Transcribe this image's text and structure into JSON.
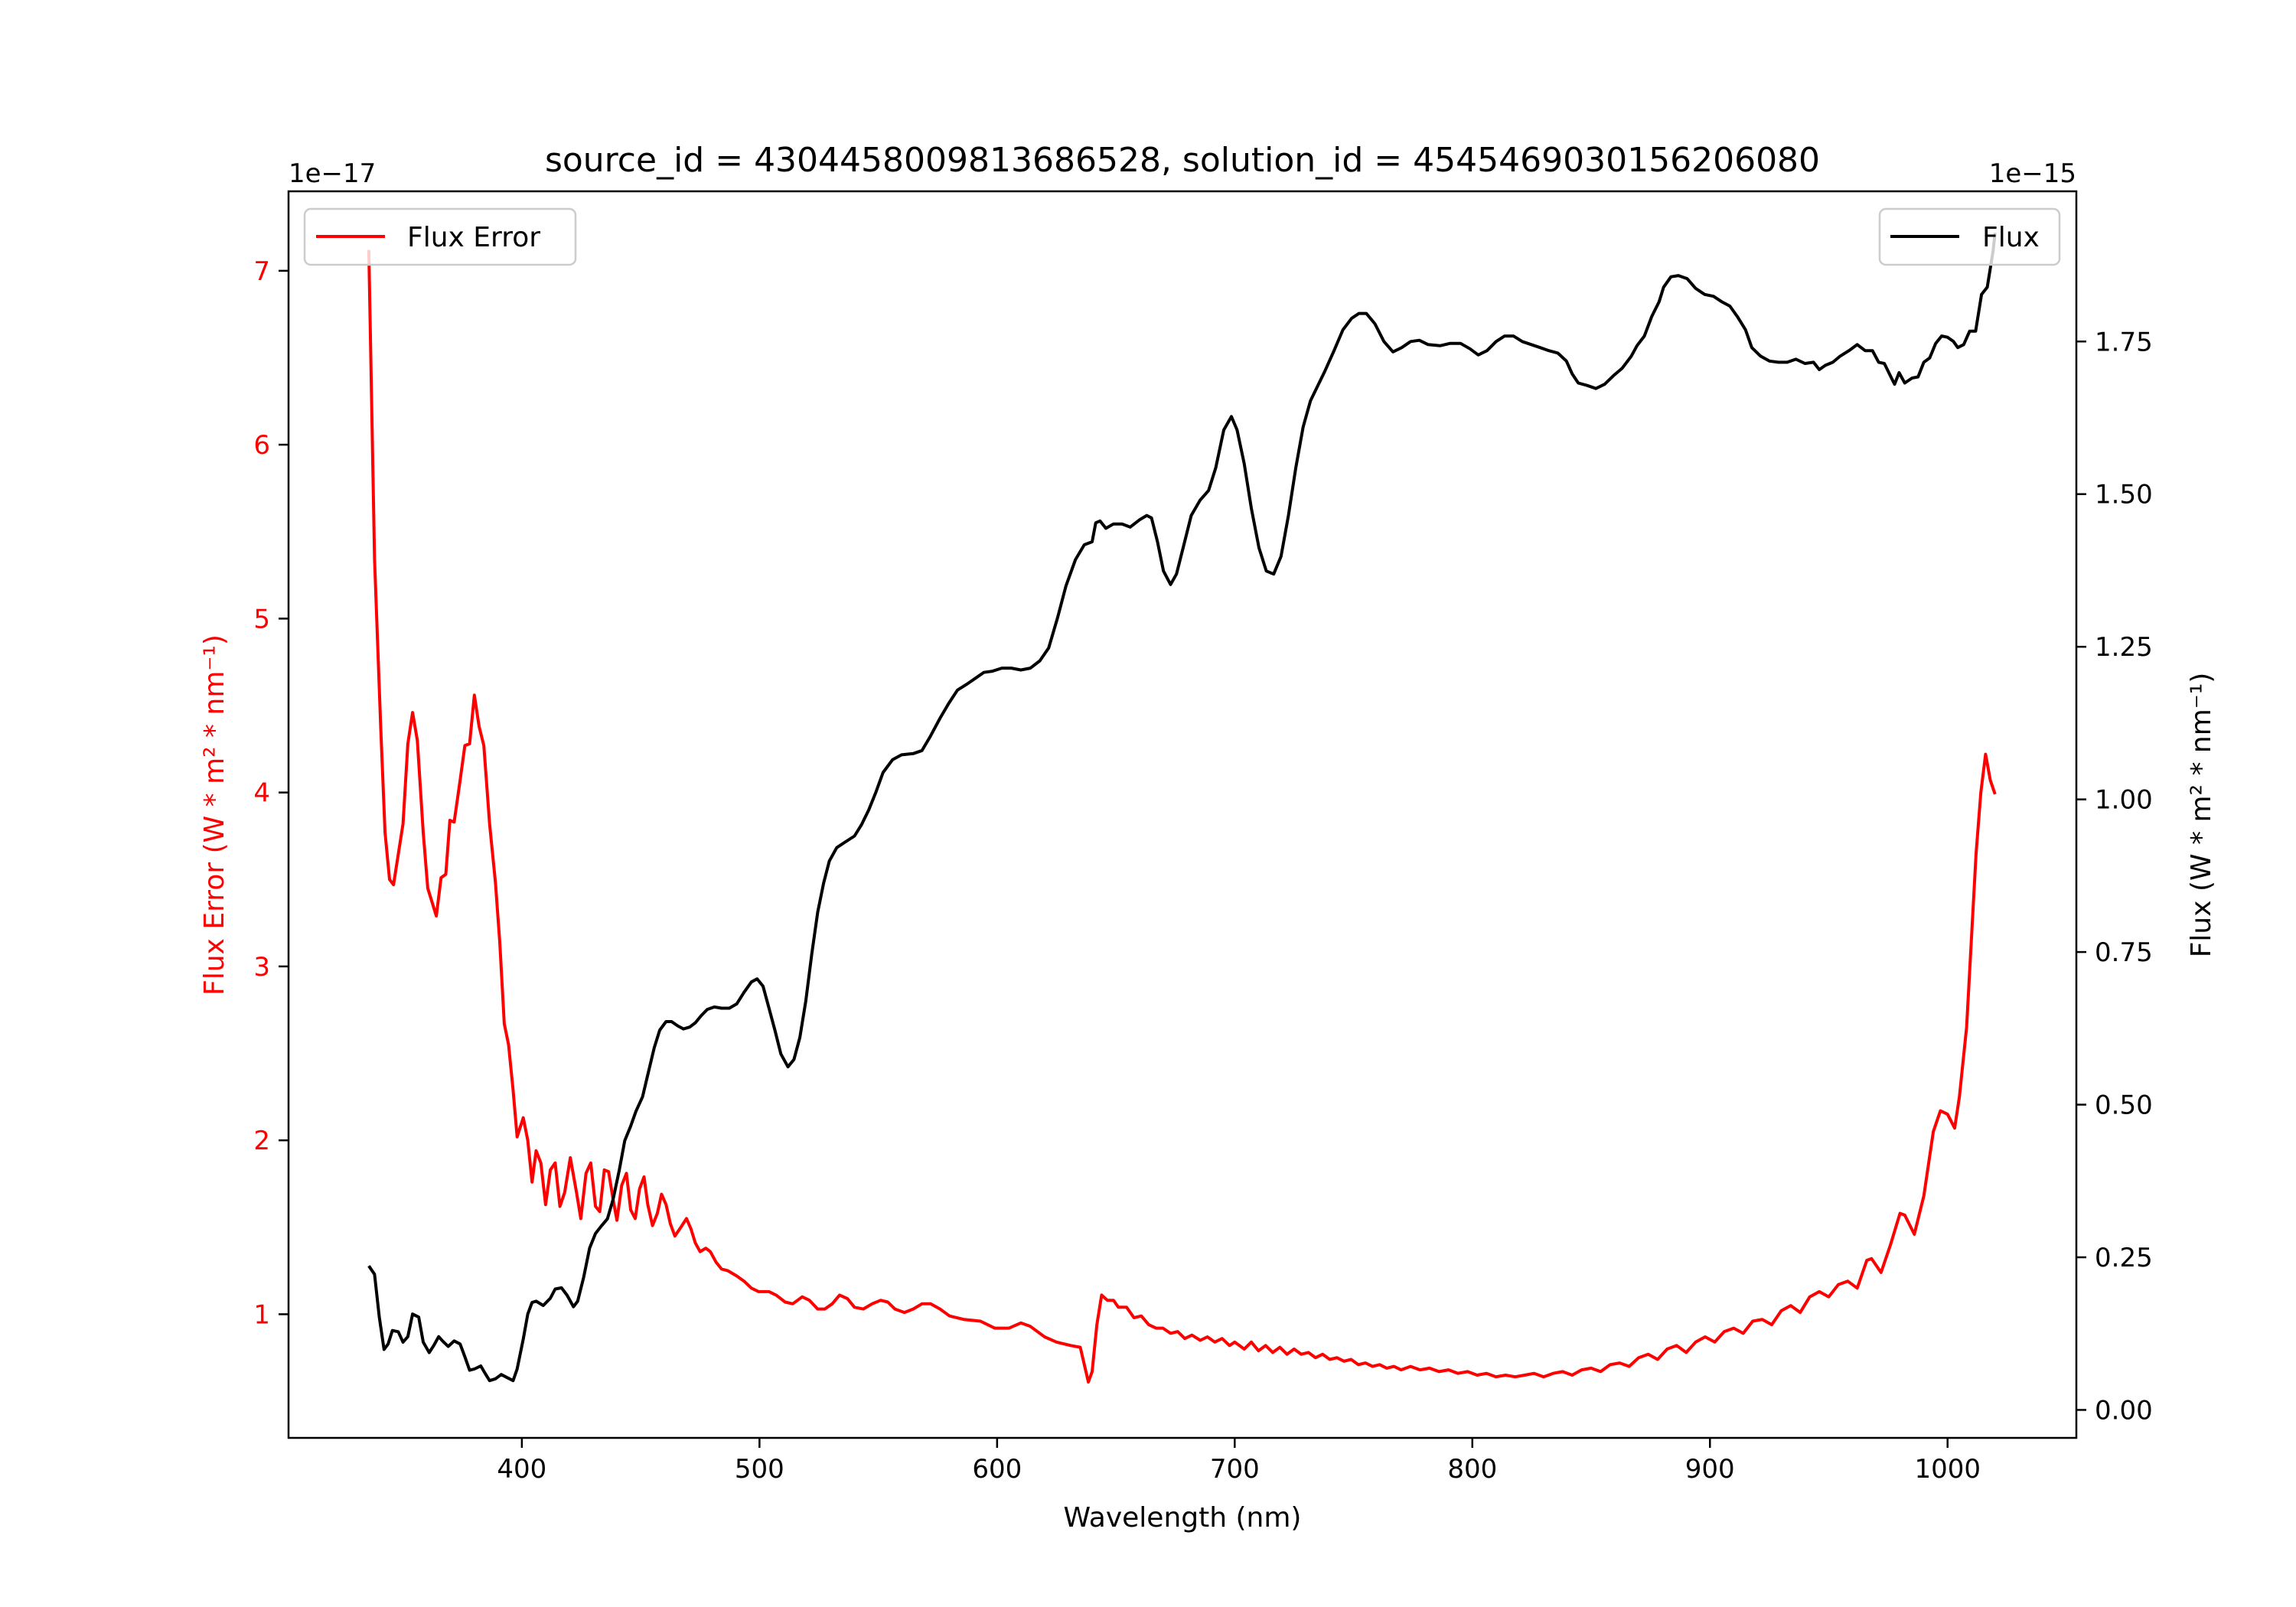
{
  "chart_data": {
    "type": "line",
    "title": "source_id = 4304458009813686528, solution_id = 4545469030156206080",
    "xlabel": "Wavelength (nm)",
    "xlim": [
      301.8,
      1054.2
    ],
    "xticks": [
      400,
      500,
      600,
      700,
      800,
      900,
      1000
    ],
    "xtick_labels": [
      "400",
      "500",
      "600",
      "700",
      "800",
      "900",
      "1000"
    ],
    "left_axis": {
      "ylabel": "Flux Error (W * m² * nm⁻¹)",
      "offset_text": "1e−17",
      "ylim": [
        0.289,
        7.457
      ],
      "yticks": [
        1,
        2,
        3,
        4,
        5,
        6,
        7
      ],
      "ytick_labels": [
        "1",
        "2",
        "3",
        "4",
        "5",
        "6",
        "7"
      ],
      "color": "#ff0000"
    },
    "right_axis": {
      "ylabel": "Flux (W * m² * nm⁻¹)",
      "offset_text": "1e−15",
      "ylim": [
        -0.0458,
        1.996
      ],
      "yticks": [
        0,
        0.25,
        0.5,
        0.75,
        1.0,
        1.25,
        1.5,
        1.75
      ],
      "ytick_labels": [
        "0.00",
        "0.25",
        "0.50",
        "0.75",
        "1.00",
        "1.25",
        "1.50",
        "1.75"
      ],
      "color": "#000000"
    },
    "grid": false,
    "series": [
      {
        "name": "Flux Error",
        "axis": "left",
        "color": "#ff0000",
        "legend_position": "upper-left",
        "x": [
          335.6,
          338,
          340.6,
          342.4,
          344.3,
          346,
          350,
          352,
          354,
          356,
          358.5,
          360.4,
          364,
          366,
          368,
          369.7,
          371.5,
          374,
          376,
          378,
          380,
          382,
          384,
          386.4,
          388.9,
          390.7,
          392.6,
          394.4,
          396.3,
          398,
          400.6,
          402.5,
          404.3,
          406,
          408,
          410,
          412,
          414,
          416,
          418,
          420.4,
          423,
          424.8,
          427,
          429,
          431,
          432.8,
          434.7,
          436.5,
          438.4,
          440,
          442,
          444,
          445.8,
          447.7,
          449.5,
          451.4,
          453,
          455,
          457,
          458.8,
          460.7,
          462.5,
          464.4,
          466.9,
          469.3,
          471.2,
          473,
          475,
          477.4,
          479.3,
          481.7,
          484,
          486.7,
          490.4,
          493.5,
          496.6,
          499.7,
          504,
          507,
          510.8,
          514,
          518,
          521,
          524.5,
          527.5,
          530.6,
          533.7,
          537,
          540,
          543.7,
          547.4,
          551,
          554,
          557,
          561,
          564.7,
          568.4,
          572,
          576,
          580,
          586,
          593,
          599,
          605,
          610,
          614,
          620,
          625,
          631,
          635,
          638.4,
          640,
          642,
          644,
          646.4,
          649,
          651,
          654.5,
          657.6,
          660.7,
          663.8,
          666.9,
          669.8,
          673,
          676,
          679,
          682,
          685.5,
          688.5,
          691.6,
          694.7,
          697.8,
          700,
          704,
          707,
          710,
          713,
          716,
          719,
          722,
          725,
          728,
          731,
          734,
          737,
          740,
          743,
          746,
          749,
          752,
          755,
          758,
          761,
          764,
          767,
          770,
          774,
          778,
          782,
          786,
          790,
          794,
          798,
          802,
          806,
          810,
          814,
          818,
          822,
          826,
          830,
          834,
          838,
          842,
          846,
          850,
          854,
          858,
          862,
          866,
          870,
          874,
          878,
          882,
          886,
          890,
          894,
          898,
          902,
          906,
          910,
          914,
          918,
          922,
          926,
          930,
          934,
          938,
          942,
          946,
          950,
          954,
          958,
          962,
          966,
          968,
          972,
          976,
          980,
          982,
          986,
          990,
          994,
          997,
          1000,
          1003,
          1005,
          1008,
          1012,
          1014,
          1016,
          1018,
          1020
        ],
        "y": [
          7.12,
          5.34,
          4.37,
          3.77,
          3.5,
          3.47,
          3.82,
          4.28,
          4.46,
          4.3,
          3.77,
          3.45,
          3.29,
          3.51,
          3.53,
          3.84,
          3.83,
          4.07,
          4.27,
          4.28,
          4.56,
          4.38,
          4.27,
          3.82,
          3.48,
          3.14,
          2.67,
          2.55,
          2.29,
          2.02,
          2.13,
          2.0,
          1.76,
          1.94,
          1.87,
          1.63,
          1.83,
          1.87,
          1.62,
          1.7,
          1.9,
          1.7,
          1.55,
          1.81,
          1.87,
          1.62,
          1.59,
          1.83,
          1.82,
          1.66,
          1.54,
          1.74,
          1.81,
          1.6,
          1.55,
          1.72,
          1.79,
          1.63,
          1.51,
          1.58,
          1.69,
          1.63,
          1.52,
          1.45,
          1.5,
          1.55,
          1.49,
          1.41,
          1.36,
          1.38,
          1.36,
          1.3,
          1.26,
          1.25,
          1.22,
          1.19,
          1.15,
          1.13,
          1.13,
          1.11,
          1.07,
          1.06,
          1.1,
          1.08,
          1.03,
          1.03,
          1.06,
          1.11,
          1.09,
          1.04,
          1.03,
          1.06,
          1.08,
          1.07,
          1.03,
          1.01,
          1.03,
          1.06,
          1.06,
          1.03,
          0.99,
          0.97,
          0.96,
          0.92,
          0.92,
          0.95,
          0.93,
          0.87,
          0.84,
          0.82,
          0.81,
          0.61,
          0.67,
          0.94,
          1.11,
          1.08,
          1.08,
          1.04,
          1.04,
          0.98,
          0.99,
          0.94,
          0.92,
          0.92,
          0.89,
          0.9,
          0.86,
          0.88,
          0.85,
          0.87,
          0.84,
          0.86,
          0.82,
          0.84,
          0.8,
          0.84,
          0.79,
          0.82,
          0.78,
          0.81,
          0.77,
          0.8,
          0.77,
          0.78,
          0.75,
          0.77,
          0.74,
          0.75,
          0.73,
          0.74,
          0.71,
          0.72,
          0.7,
          0.71,
          0.69,
          0.7,
          0.68,
          0.7,
          0.68,
          0.69,
          0.67,
          0.68,
          0.66,
          0.67,
          0.65,
          0.66,
          0.64,
          0.65,
          0.64,
          0.65,
          0.66,
          0.64,
          0.66,
          0.67,
          0.65,
          0.68,
          0.69,
          0.67,
          0.71,
          0.72,
          0.7,
          0.75,
          0.77,
          0.74,
          0.8,
          0.82,
          0.78,
          0.84,
          0.87,
          0.84,
          0.9,
          0.92,
          0.89,
          0.96,
          0.97,
          0.94,
          1.02,
          1.05,
          1.01,
          1.1,
          1.13,
          1.1,
          1.17,
          1.19,
          1.15,
          1.31,
          1.32,
          1.24,
          1.4,
          1.58,
          1.57,
          1.46,
          1.68,
          2.05,
          2.17,
          2.15,
          2.07,
          2.25,
          2.65,
          3.65,
          4.0,
          4.22,
          4.07,
          3.99
        ]
      },
      {
        "name": "Flux",
        "axis": "right",
        "color": "#000000",
        "legend_position": "upper-right",
        "x": [
          335.6,
          338,
          340,
          342,
          343.7,
          345.5,
          348,
          350,
          352,
          354,
          356.6,
          358.5,
          361,
          363,
          365,
          366.6,
          369,
          371.5,
          374,
          376,
          378,
          380,
          382.7,
          384.5,
          386.4,
          388.9,
          391.3,
          393.8,
          396.3,
          398,
          400.6,
          402.5,
          404.3,
          406,
          409,
          412,
          414,
          416.7,
          419,
          421.7,
          423.5,
          426,
          428.5,
          431,
          433.4,
          436,
          438.4,
          441,
          443.3,
          445.8,
          448,
          450.8,
          453,
          455.7,
          458,
          460.7,
          463,
          465.6,
          468,
          470.6,
          473,
          475.5,
          478,
          481,
          484,
          487.3,
          490.4,
          493.5,
          496.6,
          499,
          501.5,
          504,
          506.5,
          509,
          512,
          514.5,
          517,
          519.5,
          522,
          524.5,
          527,
          529.4,
          532.5,
          536,
          540,
          543,
          546,
          549,
          552,
          556,
          559.8,
          564.7,
          568.4,
          572,
          576,
          579.6,
          583.3,
          587,
          590.7,
          594.4,
          598,
          602,
          606,
          610,
          614,
          618,
          621.7,
          625.4,
          629,
          633,
          636.7,
          640,
          641.5,
          643.3,
          645.8,
          648.9,
          652.6,
          656,
          660,
          663,
          665,
          667.5,
          670,
          673,
          675.5,
          678.6,
          681.7,
          685.4,
          689,
          692,
          695.4,
          698.6,
          701,
          704,
          707,
          710.2,
          713.3,
          716.4,
          719.5,
          722.6,
          725.7,
          728.8,
          731.9,
          735,
          738,
          741.8,
          745.5,
          749.2,
          752.3,
          755.4,
          759,
          762.8,
          766.6,
          770.3,
          774,
          777.7,
          781.4,
          786.4,
          790.7,
          795,
          799,
          802.5,
          806.2,
          810,
          813.6,
          817.3,
          821,
          824.8,
          828.5,
          832.2,
          836,
          839.6,
          842,
          844.6,
          848.3,
          852,
          855.7,
          859.4,
          863,
          866.9,
          869.3,
          872.4,
          875.5,
          878.6,
          880.5,
          883.6,
          886.7,
          890.4,
          894,
          897.8,
          901.5,
          905,
          908.4,
          911.5,
          915,
          917.6,
          921.3,
          925,
          928.8,
          932.5,
          936.2,
          940,
          943.6,
          946,
          948.6,
          951.7,
          954.8,
          958.5,
          962,
          965.3,
          968.4,
          971,
          973.4,
          975.9,
          977.7,
          979.6,
          982,
          985,
          987.6,
          990,
          992.5,
          995,
          997.5,
          1000,
          1002.5,
          1004.3,
          1006.8,
          1009.3,
          1011.8,
          1014.3,
          1016.7,
          1019.2,
          1020
        ],
        "y": [
          0.236,
          0.222,
          0.152,
          0.099,
          0.108,
          0.13,
          0.128,
          0.111,
          0.12,
          0.157,
          0.152,
          0.111,
          0.094,
          0.106,
          0.12,
          0.113,
          0.104,
          0.113,
          0.108,
          0.087,
          0.065,
          0.067,
          0.072,
          0.06,
          0.048,
          0.051,
          0.058,
          0.053,
          0.048,
          0.067,
          0.116,
          0.157,
          0.176,
          0.178,
          0.171,
          0.183,
          0.198,
          0.2,
          0.188,
          0.169,
          0.178,
          0.217,
          0.265,
          0.289,
          0.301,
          0.313,
          0.345,
          0.393,
          0.441,
          0.465,
          0.489,
          0.513,
          0.549,
          0.593,
          0.622,
          0.636,
          0.636,
          0.629,
          0.624,
          0.627,
          0.634,
          0.646,
          0.656,
          0.66,
          0.658,
          0.658,
          0.665,
          0.684,
          0.701,
          0.706,
          0.694,
          0.658,
          0.622,
          0.583,
          0.562,
          0.574,
          0.61,
          0.67,
          0.747,
          0.815,
          0.863,
          0.899,
          0.921,
          0.93,
          0.94,
          0.959,
          0.983,
          1.012,
          1.044,
          1.065,
          1.073,
          1.075,
          1.08,
          1.104,
          1.133,
          1.157,
          1.179,
          1.188,
          1.198,
          1.208,
          1.21,
          1.215,
          1.215,
          1.212,
          1.215,
          1.227,
          1.248,
          1.297,
          1.35,
          1.393,
          1.417,
          1.422,
          1.453,
          1.456,
          1.444,
          1.451,
          1.451,
          1.446,
          1.458,
          1.465,
          1.461,
          1.422,
          1.374,
          1.352,
          1.369,
          1.417,
          1.465,
          1.49,
          1.506,
          1.543,
          1.605,
          1.627,
          1.605,
          1.55,
          1.477,
          1.412,
          1.374,
          1.369,
          1.398,
          1.465,
          1.543,
          1.61,
          1.653,
          1.678,
          1.702,
          1.735,
          1.769,
          1.788,
          1.796,
          1.796,
          1.779,
          1.75,
          1.733,
          1.74,
          1.75,
          1.752,
          1.745,
          1.743,
          1.747,
          1.747,
          1.738,
          1.728,
          1.735,
          1.75,
          1.759,
          1.759,
          1.75,
          1.745,
          1.74,
          1.735,
          1.731,
          1.718,
          1.697,
          1.682,
          1.678,
          1.673,
          1.68,
          1.694,
          1.706,
          1.726,
          1.743,
          1.759,
          1.791,
          1.815,
          1.839,
          1.856,
          1.858,
          1.853,
          1.837,
          1.827,
          1.824,
          1.815,
          1.808,
          1.791,
          1.769,
          1.74,
          1.726,
          1.718,
          1.716,
          1.716,
          1.721,
          1.714,
          1.716,
          1.704,
          1.711,
          1.716,
          1.726,
          1.735,
          1.745,
          1.735,
          1.735,
          1.716,
          1.714,
          1.694,
          1.68,
          1.699,
          1.682,
          1.69,
          1.692,
          1.716,
          1.723,
          1.747,
          1.759,
          1.757,
          1.75,
          1.74,
          1.745,
          1.767,
          1.767,
          1.827,
          1.839,
          1.899,
          1.928
        ]
      }
    ]
  }
}
